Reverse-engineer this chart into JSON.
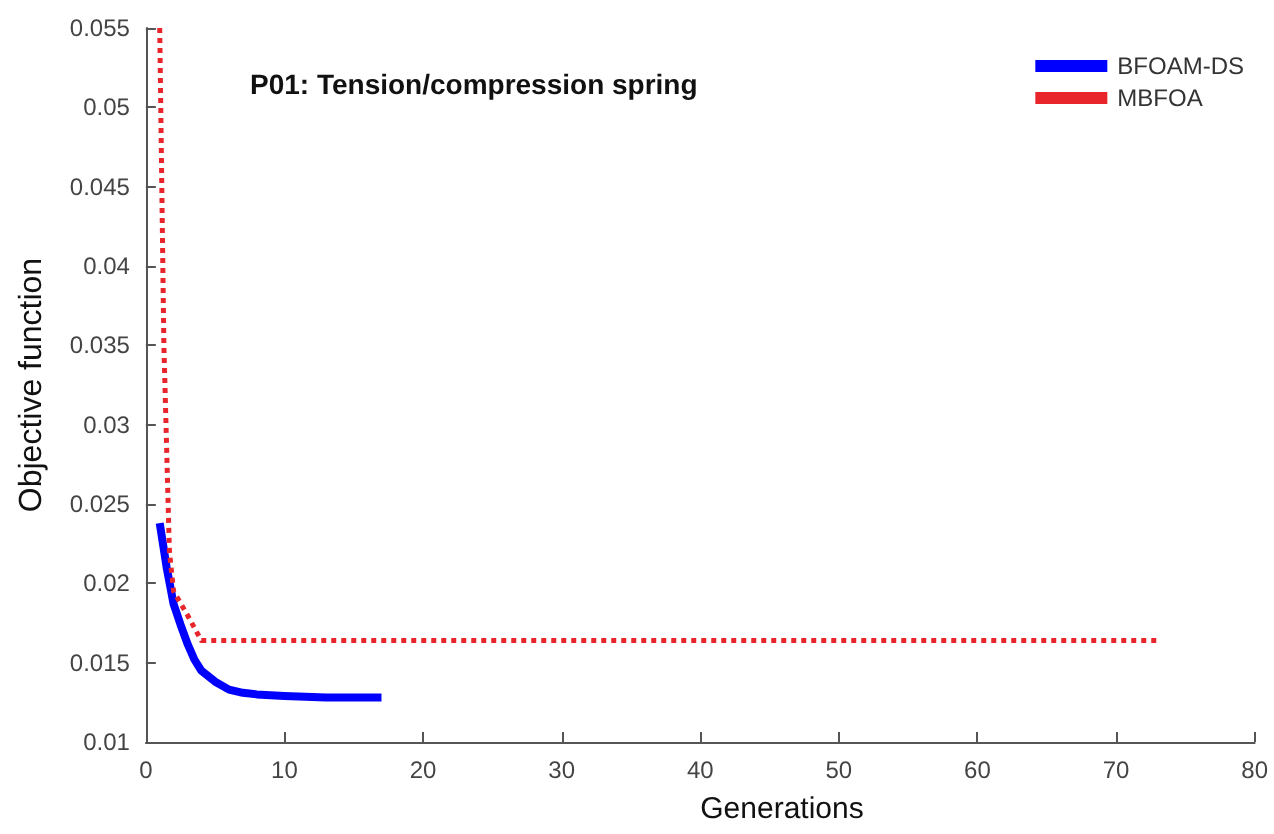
{
  "chart_data": {
    "type": "line",
    "title": "P01: Tension/compression spring",
    "xlabel": "Generations",
    "ylabel": "Objective function",
    "xlim": [
      0,
      80
    ],
    "xticks": [
      0,
      10,
      20,
      30,
      40,
      50,
      60,
      70,
      80
    ],
    "ylim": [
      0.01,
      0.055
    ],
    "yticks": [
      0.01,
      0.015,
      0.02,
      0.025,
      0.03,
      0.035,
      0.04,
      0.045,
      0.05,
      0.055
    ],
    "grid": false,
    "legend": "top right",
    "marker": "none",
    "series": [
      {
        "name": "BFOAM-DS",
        "color": "#0000ff",
        "line_style": "solid",
        "x": [
          1,
          1.5,
          2,
          2.5,
          3,
          3.5,
          4,
          5,
          6,
          7,
          8,
          10,
          13,
          17
        ],
        "values": [
          0.0238,
          0.021,
          0.0187,
          0.0174,
          0.0162,
          0.0152,
          0.0145,
          0.0138,
          0.0133,
          0.0131,
          0.013,
          0.0129,
          0.0128,
          0.0128
        ]
      },
      {
        "name": "MBFOA",
        "color": "#e8252b",
        "line_style": "dotted",
        "x": [
          1,
          1.3,
          1.7,
          2,
          3,
          4,
          73
        ],
        "values": [
          0.055,
          0.035,
          0.022,
          0.0195,
          0.018,
          0.0164,
          0.0164
        ]
      }
    ]
  }
}
